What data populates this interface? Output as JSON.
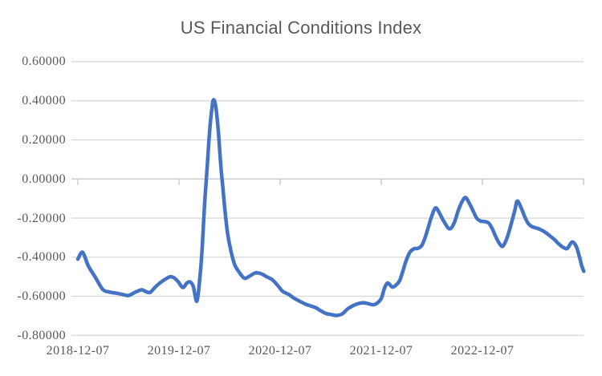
{
  "chart_data": {
    "type": "line",
    "title": "US Financial Conditions Index",
    "xlabel": "",
    "ylabel": "",
    "ylim": [
      -0.8,
      0.6
    ],
    "y_tick_step": 0.2,
    "grid": true,
    "legend": "none",
    "y_ticks": [
      "0.60000",
      "0.40000",
      "0.20000",
      "0.00000",
      "-0.20000",
      "-0.40000",
      "-0.60000",
      "-0.80000"
    ],
    "x_ticks": [
      "2018-12-07",
      "2019-12-07",
      "2020-12-07",
      "2021-12-07",
      "2022-12-07"
    ],
    "colors": {
      "line": "#4472C4",
      "gridline": "#D9D9D9",
      "axis": "#CFCFCF",
      "tick": "#C9C9C9",
      "text": "#595959",
      "background": "#FFFFFF"
    },
    "series": [
      {
        "name": "US Financial Conditions Index",
        "points": [
          [
            "2018-12-07",
            -0.41
          ],
          [
            "2018-12-24",
            -0.375
          ],
          [
            "2019-01-14",
            -0.445
          ],
          [
            "2019-02-07",
            -0.5
          ],
          [
            "2019-03-07",
            -0.565
          ],
          [
            "2019-03-30",
            -0.578
          ],
          [
            "2019-04-25",
            -0.584
          ],
          [
            "2019-05-15",
            -0.59
          ],
          [
            "2019-06-08",
            -0.596
          ],
          [
            "2019-07-01",
            -0.58
          ],
          [
            "2019-07-15",
            -0.571
          ],
          [
            "2019-07-27",
            -0.567
          ],
          [
            "2019-08-10",
            -0.576
          ],
          [
            "2019-08-25",
            -0.58
          ],
          [
            "2019-09-11",
            -0.555
          ],
          [
            "2019-10-01",
            -0.53
          ],
          [
            "2019-10-22",
            -0.51
          ],
          [
            "2019-11-05",
            -0.5
          ],
          [
            "2019-11-19",
            -0.505
          ],
          [
            "2019-12-04",
            -0.525
          ],
          [
            "2019-12-21",
            -0.555
          ],
          [
            "2020-01-05",
            -0.532
          ],
          [
            "2020-01-17",
            -0.527
          ],
          [
            "2020-01-28",
            -0.55
          ],
          [
            "2020-02-10",
            -0.625
          ],
          [
            "2020-02-21",
            -0.5
          ],
          [
            "2020-03-01",
            -0.33
          ],
          [
            "2020-03-09",
            -0.12
          ],
          [
            "2020-03-18",
            0.06
          ],
          [
            "2020-03-26",
            0.23
          ],
          [
            "2020-04-04",
            0.36
          ],
          [
            "2020-04-10",
            0.405
          ],
          [
            "2020-04-18",
            0.37
          ],
          [
            "2020-04-27",
            0.25
          ],
          [
            "2020-05-05",
            0.09
          ],
          [
            "2020-05-14",
            -0.05
          ],
          [
            "2020-05-22",
            -0.17
          ],
          [
            "2020-05-31",
            -0.28
          ],
          [
            "2020-06-12",
            -0.37
          ],
          [
            "2020-06-26",
            -0.44
          ],
          [
            "2020-07-13",
            -0.48
          ],
          [
            "2020-07-31",
            -0.508
          ],
          [
            "2020-08-20",
            -0.495
          ],
          [
            "2020-09-09",
            -0.48
          ],
          [
            "2020-09-29",
            -0.485
          ],
          [
            "2020-10-19",
            -0.5
          ],
          [
            "2020-11-08",
            -0.515
          ],
          [
            "2020-11-28",
            -0.545
          ],
          [
            "2020-12-16",
            -0.575
          ],
          [
            "2021-01-06",
            -0.59
          ],
          [
            "2021-01-26",
            -0.61
          ],
          [
            "2021-02-15",
            -0.625
          ],
          [
            "2021-03-08",
            -0.64
          ],
          [
            "2021-03-28",
            -0.65
          ],
          [
            "2021-04-14",
            -0.658
          ],
          [
            "2021-05-01",
            -0.673
          ],
          [
            "2021-05-21",
            -0.688
          ],
          [
            "2021-06-11",
            -0.694
          ],
          [
            "2021-06-28",
            -0.698
          ],
          [
            "2021-07-19",
            -0.69
          ],
          [
            "2021-08-07",
            -0.665
          ],
          [
            "2021-08-27",
            -0.648
          ],
          [
            "2021-09-16",
            -0.637
          ],
          [
            "2021-10-04",
            -0.633
          ],
          [
            "2021-10-21",
            -0.638
          ],
          [
            "2021-11-08",
            -0.643
          ],
          [
            "2021-11-22",
            -0.635
          ],
          [
            "2021-12-07",
            -0.61
          ],
          [
            "2021-12-18",
            -0.56
          ],
          [
            "2021-12-30",
            -0.532
          ],
          [
            "2022-01-16",
            -0.553
          ],
          [
            "2022-01-31",
            -0.54
          ],
          [
            "2022-02-11",
            -0.52
          ],
          [
            "2022-02-23",
            -0.47
          ],
          [
            "2022-03-06",
            -0.42
          ],
          [
            "2022-03-20",
            -0.375
          ],
          [
            "2022-04-04",
            -0.357
          ],
          [
            "2022-04-18",
            -0.355
          ],
          [
            "2022-05-02",
            -0.34
          ],
          [
            "2022-05-14",
            -0.3
          ],
          [
            "2022-05-25",
            -0.25
          ],
          [
            "2022-06-07",
            -0.19
          ],
          [
            "2022-06-21",
            -0.148
          ],
          [
            "2022-07-05",
            -0.175
          ],
          [
            "2022-07-20",
            -0.215
          ],
          [
            "2022-08-10",
            -0.255
          ],
          [
            "2022-08-27",
            -0.225
          ],
          [
            "2022-09-11",
            -0.16
          ],
          [
            "2022-09-25",
            -0.115
          ],
          [
            "2022-10-07",
            -0.095
          ],
          [
            "2022-10-21",
            -0.125
          ],
          [
            "2022-11-04",
            -0.165
          ],
          [
            "2022-11-16",
            -0.2
          ],
          [
            "2022-11-30",
            -0.215
          ],
          [
            "2022-12-15",
            -0.218
          ],
          [
            "2022-12-29",
            -0.225
          ],
          [
            "2023-01-10",
            -0.25
          ],
          [
            "2023-01-21",
            -0.285
          ],
          [
            "2023-02-02",
            -0.32
          ],
          [
            "2023-02-16",
            -0.345
          ],
          [
            "2023-02-27",
            -0.325
          ],
          [
            "2023-03-11",
            -0.28
          ],
          [
            "2023-03-22",
            -0.225
          ],
          [
            "2023-04-03",
            -0.16
          ],
          [
            "2023-04-12",
            -0.113
          ],
          [
            "2023-04-26",
            -0.148
          ],
          [
            "2023-05-08",
            -0.19
          ],
          [
            "2023-05-20",
            -0.225
          ],
          [
            "2023-06-03",
            -0.243
          ],
          [
            "2023-06-18",
            -0.25
          ],
          [
            "2023-07-02",
            -0.257
          ],
          [
            "2023-07-19",
            -0.27
          ],
          [
            "2023-08-07",
            -0.29
          ],
          [
            "2023-08-24",
            -0.31
          ],
          [
            "2023-09-11",
            -0.335
          ],
          [
            "2023-09-28",
            -0.352
          ],
          [
            "2023-10-10",
            -0.355
          ],
          [
            "2023-10-27",
            -0.322
          ],
          [
            "2023-11-11",
            -0.345
          ],
          [
            "2023-11-22",
            -0.395
          ],
          [
            "2023-11-30",
            -0.44
          ],
          [
            "2023-12-08",
            -0.472
          ]
        ]
      }
    ]
  }
}
